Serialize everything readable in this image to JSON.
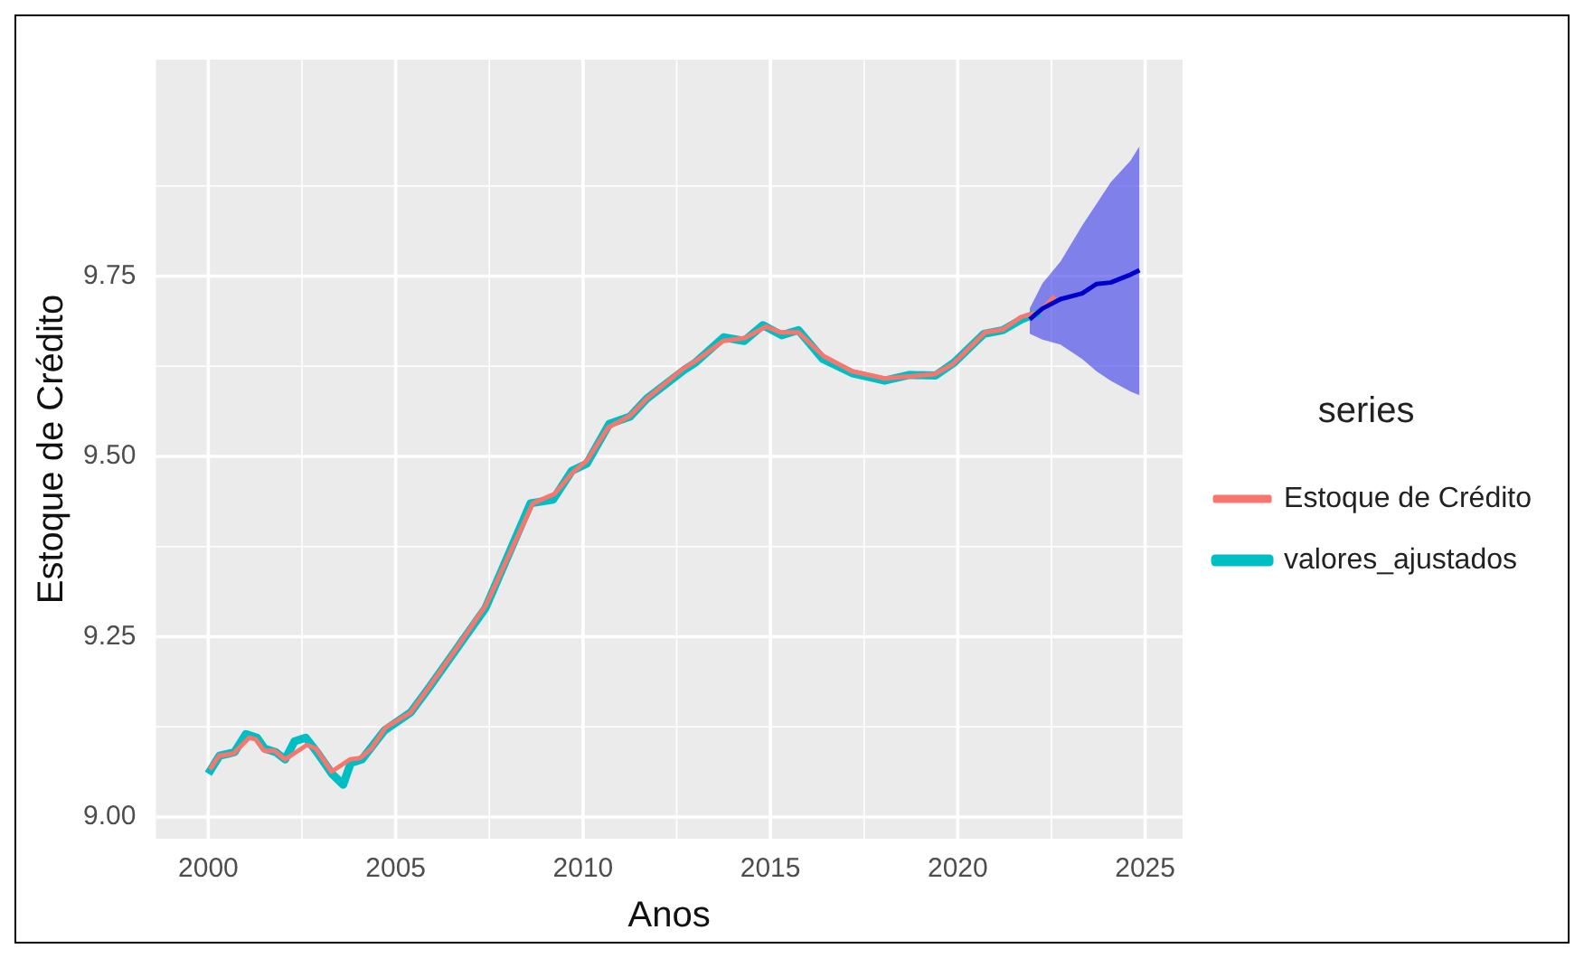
{
  "chart_data": {
    "type": "line",
    "xlabel": "Anos",
    "ylabel": "Estoque de Crédito",
    "legend_title": "series",
    "legend": "right",
    "grid": true,
    "xlim": [
      1998.6,
      2026.0
    ],
    "xticks": [
      2000,
      2005,
      2010,
      2015,
      2020,
      2025
    ],
    "ylim": [
      8.97,
      10.05
    ],
    "yticks": [
      {
        "value": 9.0,
        "label": "9.00"
      },
      {
        "value": 9.25,
        "label": "9.25"
      },
      {
        "value": 9.5,
        "label": "9.50"
      },
      {
        "value": 9.75,
        "label": "9.75"
      }
    ],
    "series": [
      {
        "name": "Estoque de Crédito",
        "color": "#f8766d",
        "x": [
          2000.04,
          2000.29,
          2000.67,
          2001.09,
          2001.26,
          2001.49,
          2001.76,
          2002.05,
          2002.34,
          2002.63,
          2002.87,
          2003.29,
          2003.78,
          2004.06,
          2004.35,
          2004.73,
          2005.4,
          2005.86,
          2006.65,
          2007.41,
          2008.66,
          2009.24,
          2009.71,
          2010.1,
          2010.67,
          2011.25,
          2011.72,
          2012.68,
          2012.97,
          2013.74,
          2014.31,
          2014.89,
          2015.27,
          2015.75,
          2016.42,
          2017.18,
          2018.05,
          2018.72,
          2019.39,
          2019.87,
          2020.73,
          2021.21,
          2021.68,
          2022.17,
          2022.59
        ],
        "values": [
          9.066,
          9.085,
          9.088,
          9.11,
          9.108,
          9.092,
          9.092,
          9.08,
          9.09,
          9.1,
          9.095,
          9.063,
          9.08,
          9.082,
          9.095,
          9.124,
          9.145,
          9.178,
          9.236,
          9.294,
          9.435,
          9.448,
          9.477,
          9.494,
          9.54,
          9.556,
          9.581,
          9.622,
          9.631,
          9.66,
          9.664,
          9.68,
          9.672,
          9.672,
          9.639,
          9.618,
          9.608,
          9.611,
          9.614,
          9.628,
          9.672,
          9.676,
          9.693,
          9.7,
          9.722
        ]
      },
      {
        "name": "valores_ajustados",
        "color": "#00bfc4",
        "x": [
          2000.0,
          2000.3,
          2000.7,
          2001.0,
          2001.3,
          2001.5,
          2001.8,
          2002.05,
          2002.3,
          2002.6,
          2002.9,
          2003.3,
          2003.6,
          2003.8,
          2004.1,
          2004.4,
          2004.7,
          2005.4,
          2005.9,
          2006.65,
          2007.4,
          2008.6,
          2009.2,
          2009.7,
          2010.1,
          2010.7,
          2011.25,
          2011.7,
          2012.7,
          2013.0,
          2013.75,
          2014.3,
          2014.8,
          2015.3,
          2015.75,
          2016.4,
          2017.2,
          2018.05,
          2018.7,
          2019.4,
          2019.9,
          2020.7,
          2021.2,
          2021.7,
          2022.2
        ],
        "values": [
          9.06,
          9.085,
          9.09,
          9.115,
          9.11,
          9.095,
          9.09,
          9.08,
          9.105,
          9.11,
          9.09,
          9.06,
          9.045,
          9.075,
          9.08,
          9.1,
          9.12,
          9.145,
          9.18,
          9.235,
          9.29,
          9.435,
          9.44,
          9.48,
          9.49,
          9.545,
          9.555,
          9.58,
          9.62,
          9.63,
          9.665,
          9.66,
          9.682,
          9.668,
          9.675,
          9.635,
          9.615,
          9.605,
          9.613,
          9.612,
          9.63,
          9.67,
          9.675,
          9.69,
          9.7
        ]
      },
      {
        "color": "#0000cd",
        "x": [
          2021.92,
          2022.26,
          2022.74,
          2023.32,
          2023.7,
          2024.08,
          2024.61,
          2024.85
        ],
        "values": [
          9.69,
          9.705,
          9.718,
          9.726,
          9.739,
          9.741,
          9.752,
          9.758
        ],
        "lower": [
          9.67,
          9.662,
          9.655,
          9.635,
          9.618,
          9.605,
          9.59,
          9.585
        ],
        "upper": [
          9.705,
          9.74,
          9.77,
          9.82,
          9.85,
          9.88,
          9.91,
          9.93
        ]
      }
    ]
  }
}
